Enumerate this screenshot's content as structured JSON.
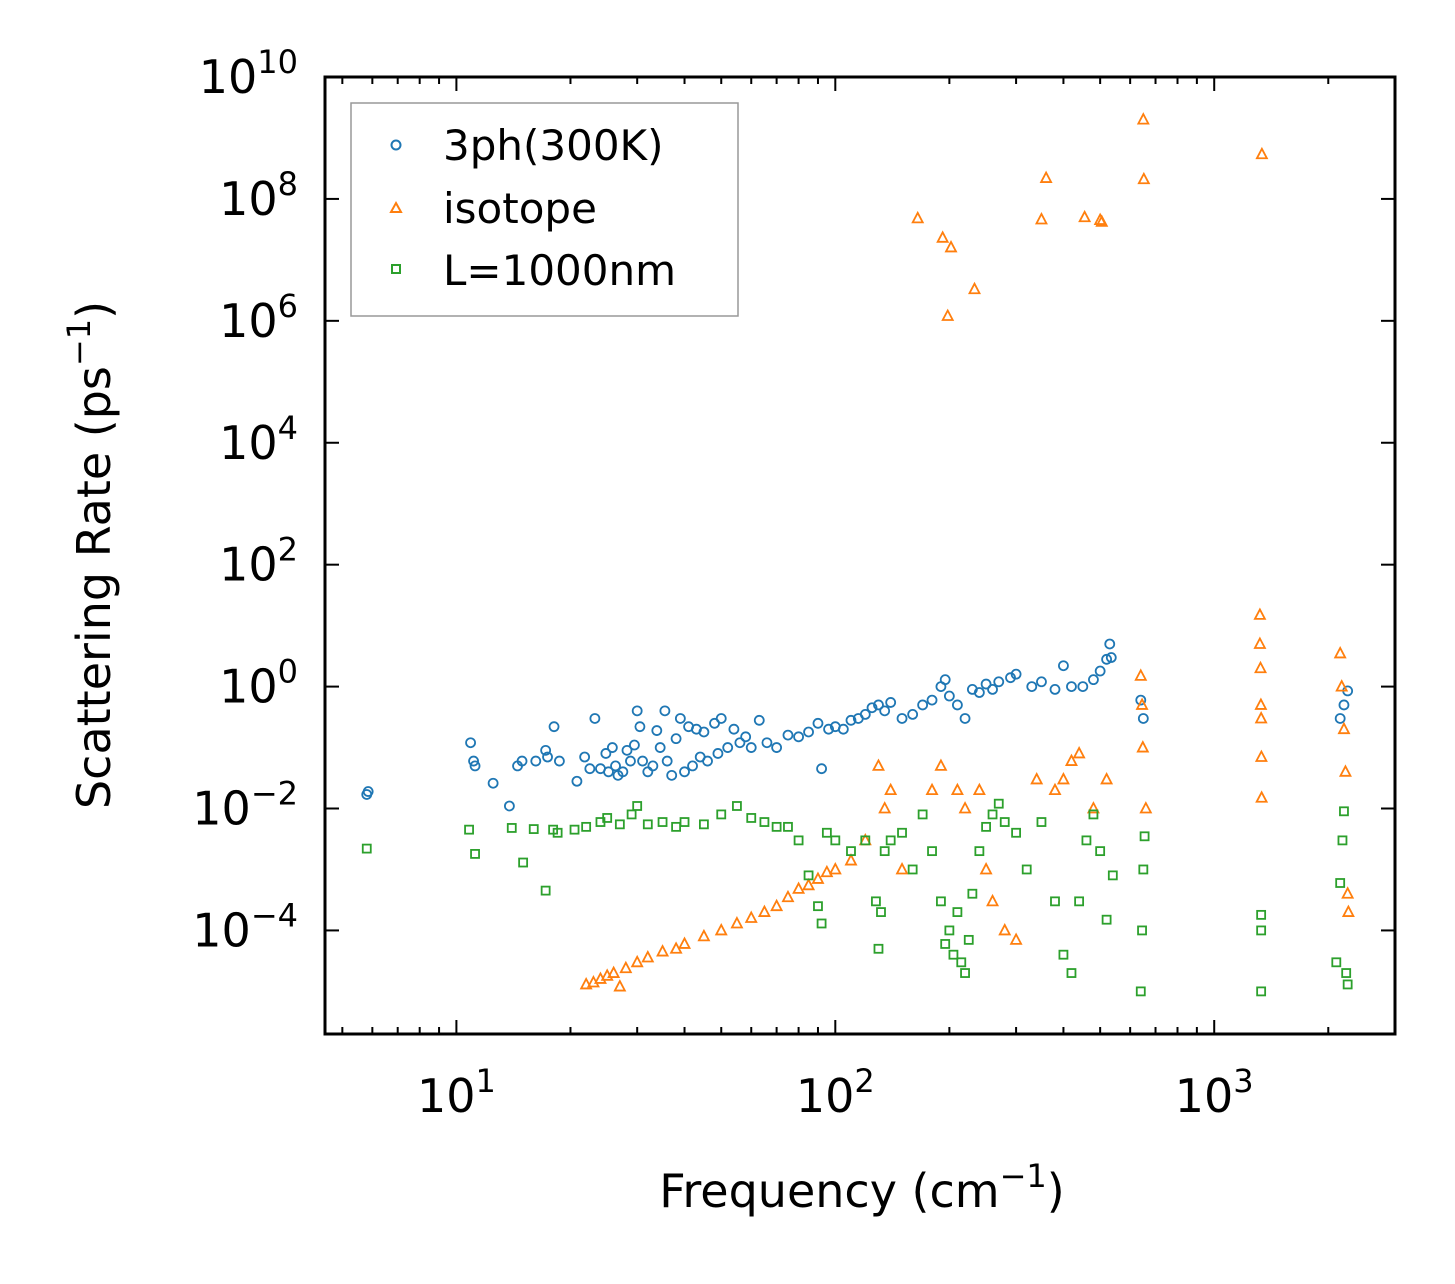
{
  "chart_data": {
    "type": "scatter",
    "xscale": "log",
    "yscale": "log",
    "xlim": [
      4.5,
      3000
    ],
    "ylim": [
      2e-06,
      10000000000
    ],
    "xlabel": "Frequency (cm",
    "xlabel_sup": "−1",
    "xlabel_end": ")",
    "ylabel": "Scattering Rate (ps",
    "ylabel_sup": "−1",
    "ylabel_end": ")",
    "xticks": [
      {
        "value": 10,
        "base": "10",
        "exp": "1"
      },
      {
        "value": 100,
        "base": "10",
        "exp": "2"
      },
      {
        "value": 1000,
        "base": "10",
        "exp": "3"
      }
    ],
    "yticks": [
      {
        "value": 0.0001,
        "base": "10",
        "exp": "−4"
      },
      {
        "value": 0.01,
        "base": "10",
        "exp": "−2"
      },
      {
        "value": 1,
        "base": "10",
        "exp": "0"
      },
      {
        "value": 100,
        "base": "10",
        "exp": "2"
      },
      {
        "value": 10000,
        "base": "10",
        "exp": "4"
      },
      {
        "value": 1000000,
        "base": "10",
        "exp": "6"
      },
      {
        "value": 100000000,
        "base": "10",
        "exp": "8"
      },
      {
        "value": 10000000000,
        "base": "10",
        "exp": "10"
      }
    ],
    "legend_position": "top-left",
    "series": [
      {
        "name": "3ph(300K)",
        "marker": "circle",
        "color": "#1f77b4",
        "points": [
          [
            5.8,
            0.017
          ],
          [
            5.85,
            0.019
          ],
          [
            10.9,
            0.12
          ],
          [
            11.1,
            0.06
          ],
          [
            11.2,
            0.05
          ],
          [
            12.5,
            0.026
          ],
          [
            13.8,
            0.011
          ],
          [
            14.5,
            0.05
          ],
          [
            14.9,
            0.06
          ],
          [
            16.2,
            0.06
          ],
          [
            17.2,
            0.09
          ],
          [
            17.4,
            0.07
          ],
          [
            18.1,
            0.22
          ],
          [
            18.7,
            0.06
          ],
          [
            20.8,
            0.028
          ],
          [
            21.8,
            0.07
          ],
          [
            22.5,
            0.045
          ],
          [
            23.2,
            0.3
          ],
          [
            24.0,
            0.045
          ],
          [
            24.8,
            0.08
          ],
          [
            25.2,
            0.04
          ],
          [
            25.8,
            0.1
          ],
          [
            26.3,
            0.05
          ],
          [
            26.7,
            0.035
          ],
          [
            27.5,
            0.04
          ],
          [
            28.2,
            0.09
          ],
          [
            28.8,
            0.06
          ],
          [
            29.5,
            0.11
          ],
          [
            30.0,
            0.4
          ],
          [
            30.5,
            0.22
          ],
          [
            31.0,
            0.06
          ],
          [
            32.0,
            0.04
          ],
          [
            33.0,
            0.05
          ],
          [
            33.8,
            0.19
          ],
          [
            34.5,
            0.1
          ],
          [
            35.5,
            0.4
          ],
          [
            36.0,
            0.06
          ],
          [
            37.0,
            0.035
          ],
          [
            38.0,
            0.14
          ],
          [
            39.0,
            0.3
          ],
          [
            40.0,
            0.04
          ],
          [
            41.0,
            0.22
          ],
          [
            42.0,
            0.05
          ],
          [
            43.0,
            0.2
          ],
          [
            44.0,
            0.07
          ],
          [
            45.0,
            0.18
          ],
          [
            46.0,
            0.06
          ],
          [
            48.0,
            0.25
          ],
          [
            49.0,
            0.08
          ],
          [
            50.0,
            0.3
          ],
          [
            52.0,
            0.1
          ],
          [
            54.0,
            0.2
          ],
          [
            56.0,
            0.12
          ],
          [
            58.0,
            0.15
          ],
          [
            60.0,
            0.1
          ],
          [
            63.0,
            0.28
          ],
          [
            66.0,
            0.12
          ],
          [
            70.0,
            0.1
          ],
          [
            75.0,
            0.16
          ],
          [
            80.0,
            0.15
          ],
          [
            85.0,
            0.18
          ],
          [
            90.0,
            0.25
          ],
          [
            92.0,
            0.045
          ],
          [
            96.0,
            0.2
          ],
          [
            100.0,
            0.22
          ],
          [
            105.0,
            0.2
          ],
          [
            110.0,
            0.28
          ],
          [
            115.0,
            0.3
          ],
          [
            120.0,
            0.35
          ],
          [
            125.0,
            0.45
          ],
          [
            130.0,
            0.5
          ],
          [
            135.0,
            0.4
          ],
          [
            140.0,
            0.55
          ],
          [
            150.0,
            0.3
          ],
          [
            160.0,
            0.35
          ],
          [
            170.0,
            0.5
          ],
          [
            180.0,
            0.6
          ],
          [
            190.0,
            1.0
          ],
          [
            195.0,
            1.3
          ],
          [
            200.0,
            0.7
          ],
          [
            210.0,
            0.5
          ],
          [
            220.0,
            0.3
          ],
          [
            230.0,
            0.9
          ],
          [
            240.0,
            0.8
          ],
          [
            250.0,
            1.1
          ],
          [
            260.0,
            0.9
          ],
          [
            270.0,
            1.2
          ],
          [
            290.0,
            1.4
          ],
          [
            300.0,
            1.6
          ],
          [
            330.0,
            1.0
          ],
          [
            350.0,
            1.2
          ],
          [
            380.0,
            0.9
          ],
          [
            400.0,
            2.2
          ],
          [
            420.0,
            1.0
          ],
          [
            450.0,
            1.0
          ],
          [
            480.0,
            1.3
          ],
          [
            500.0,
            1.8
          ],
          [
            520.0,
            2.8
          ],
          [
            530.0,
            5.0
          ],
          [
            535.0,
            3.0
          ],
          [
            640.0,
            0.6
          ],
          [
            650.0,
            0.3
          ],
          [
            2150.0,
            0.3
          ],
          [
            2200.0,
            0.5
          ],
          [
            2250.0,
            0.85
          ]
        ]
      },
      {
        "name": "isotope",
        "marker": "triangle",
        "color": "#ff7f0e",
        "points": [
          [
            22.0,
            1.3e-05
          ],
          [
            23.0,
            1.4e-05
          ],
          [
            24.0,
            1.6e-05
          ],
          [
            25.0,
            1.8e-05
          ],
          [
            26.0,
            2e-05
          ],
          [
            27.0,
            1.2e-05
          ],
          [
            28.0,
            2.4e-05
          ],
          [
            30.0,
            3e-05
          ],
          [
            32.0,
            3.6e-05
          ],
          [
            35.0,
            4.5e-05
          ],
          [
            38.0,
            5e-05
          ],
          [
            40.0,
            6e-05
          ],
          [
            45.0,
            8e-05
          ],
          [
            50.0,
            0.0001
          ],
          [
            55.0,
            0.00013
          ],
          [
            60.0,
            0.00016
          ],
          [
            65.0,
            0.0002
          ],
          [
            70.0,
            0.00025
          ],
          [
            75.0,
            0.00035
          ],
          [
            80.0,
            0.00048
          ],
          [
            85.0,
            0.00055
          ],
          [
            90.0,
            0.0007
          ],
          [
            95.0,
            0.0009
          ],
          [
            100.0,
            0.001
          ],
          [
            110.0,
            0.0014
          ],
          [
            120.0,
            0.003
          ],
          [
            130.0,
            0.05
          ],
          [
            135.0,
            0.01
          ],
          [
            140.0,
            0.02
          ],
          [
            150.0,
            0.001
          ],
          [
            165.0,
            48000000
          ],
          [
            180.0,
            0.02
          ],
          [
            190.0,
            0.05
          ],
          [
            192.0,
            23000000
          ],
          [
            198.0,
            1200000
          ],
          [
            202.0,
            16000000
          ],
          [
            210.0,
            0.02
          ],
          [
            220.0,
            0.01
          ],
          [
            233.0,
            3300000
          ],
          [
            240.0,
            0.02
          ],
          [
            250.0,
            0.001
          ],
          [
            260.0,
            0.0003
          ],
          [
            280.0,
            0.0001
          ],
          [
            300.0,
            7e-05
          ],
          [
            340.0,
            0.03
          ],
          [
            350.0,
            46000000
          ],
          [
            360.0,
            220000000
          ],
          [
            380.0,
            0.02
          ],
          [
            400.0,
            0.03
          ],
          [
            420.0,
            0.06
          ],
          [
            440.0,
            0.08
          ],
          [
            455.0,
            50000000
          ],
          [
            480.0,
            0.01
          ],
          [
            500.0,
            45000000
          ],
          [
            505.0,
            42000000
          ],
          [
            520.0,
            0.03
          ],
          [
            640.0,
            1.5
          ],
          [
            645.0,
            0.5
          ],
          [
            648.0,
            0.1
          ],
          [
            650.0,
            2000000000
          ],
          [
            652.0,
            210000000
          ],
          [
            660.0,
            0.01
          ],
          [
            1320.0,
            15
          ],
          [
            1320.0,
            5
          ],
          [
            1325.0,
            2
          ],
          [
            1328.0,
            0.5
          ],
          [
            1330.0,
            0.3
          ],
          [
            1332.0,
            0.07
          ],
          [
            1334.0,
            0.015
          ],
          [
            1336.0,
            540000000
          ],
          [
            2150.0,
            3.5
          ],
          [
            2170.0,
            1
          ],
          [
            2200.0,
            0.2
          ],
          [
            2220.0,
            0.04
          ],
          [
            2250.0,
            0.0004
          ],
          [
            2260.0,
            0.0002
          ]
        ]
      },
      {
        "name": "L=1000nm",
        "marker": "square",
        "color": "#2ca02c",
        "points": [
          [
            5.8,
            0.0022
          ],
          [
            10.8,
            0.0045
          ],
          [
            11.2,
            0.0018
          ],
          [
            14.0,
            0.0048
          ],
          [
            15.0,
            0.0013
          ],
          [
            16.0,
            0.0046
          ],
          [
            17.2,
            0.00045
          ],
          [
            18.0,
            0.0045
          ],
          [
            18.5,
            0.004
          ],
          [
            20.5,
            0.0045
          ],
          [
            22.0,
            0.005
          ],
          [
            24.0,
            0.006
          ],
          [
            25.0,
            0.007
          ],
          [
            27.0,
            0.0055
          ],
          [
            29.0,
            0.008
          ],
          [
            30.0,
            0.011
          ],
          [
            32.0,
            0.0055
          ],
          [
            35.0,
            0.006
          ],
          [
            38.0,
            0.005
          ],
          [
            40.0,
            0.006
          ],
          [
            45.0,
            0.0055
          ],
          [
            50.0,
            0.008
          ],
          [
            55.0,
            0.011
          ],
          [
            60.0,
            0.007
          ],
          [
            65.0,
            0.006
          ],
          [
            70.0,
            0.005
          ],
          [
            75.0,
            0.005
          ],
          [
            80.0,
            0.003
          ],
          [
            85.0,
            0.0008
          ],
          [
            90.0,
            0.00025
          ],
          [
            92.0,
            0.00013
          ],
          [
            95.0,
            0.004
          ],
          [
            100.0,
            0.003
          ],
          [
            110.0,
            0.002
          ],
          [
            120.0,
            0.003
          ],
          [
            128.0,
            0.0003
          ],
          [
            130.0,
            5e-05
          ],
          [
            132.0,
            0.0002
          ],
          [
            135.0,
            0.002
          ],
          [
            140.0,
            0.003
          ],
          [
            150.0,
            0.004
          ],
          [
            160.0,
            0.001
          ],
          [
            170.0,
            0.008
          ],
          [
            180.0,
            0.002
          ],
          [
            190.0,
            0.0003
          ],
          [
            195.0,
            6e-05
          ],
          [
            200.0,
            0.0001
          ],
          [
            205.0,
            4e-05
          ],
          [
            210.0,
            0.0002
          ],
          [
            215.0,
            3e-05
          ],
          [
            220.0,
            2e-05
          ],
          [
            225.0,
            7e-05
          ],
          [
            230.0,
            0.0004
          ],
          [
            240.0,
            0.002
          ],
          [
            250.0,
            0.005
          ],
          [
            260.0,
            0.008
          ],
          [
            270.0,
            0.012
          ],
          [
            280.0,
            0.006
          ],
          [
            300.0,
            0.004
          ],
          [
            320.0,
            0.001
          ],
          [
            350.0,
            0.006
          ],
          [
            380.0,
            0.0003
          ],
          [
            400.0,
            4e-05
          ],
          [
            420.0,
            2e-05
          ],
          [
            440.0,
            0.0003
          ],
          [
            460.0,
            0.003
          ],
          [
            480.0,
            0.008
          ],
          [
            500.0,
            0.002
          ],
          [
            520.0,
            0.00015
          ],
          [
            540.0,
            0.0008
          ],
          [
            640.0,
            1e-05
          ],
          [
            645.0,
            0.0001
          ],
          [
            650.0,
            0.001
          ],
          [
            655.0,
            0.0035
          ],
          [
            1330.0,
            1e-05
          ],
          [
            1330.0,
            0.0001
          ],
          [
            1330.0,
            0.00018
          ],
          [
            2100.0,
            3e-05
          ],
          [
            2150.0,
            0.0006
          ],
          [
            2180.0,
            0.003
          ],
          [
            2200.0,
            0.009
          ],
          [
            2230.0,
            2e-05
          ],
          [
            2250.0,
            1.3e-05
          ]
        ]
      }
    ]
  }
}
